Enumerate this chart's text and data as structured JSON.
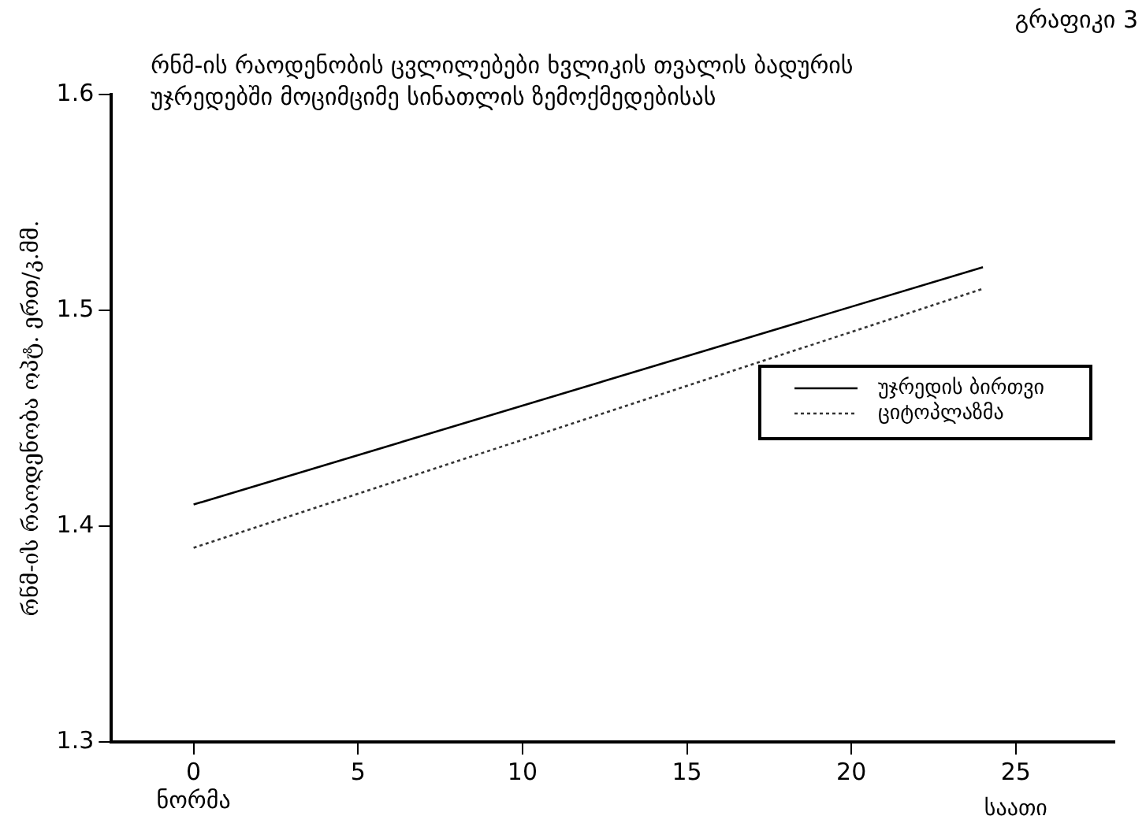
{
  "chart_data": {
    "type": "line",
    "title": "რნმ-ის რაოდენობის ცვლილებები ხვლიკის თვალის ბადურის\nუჯრედებში მოციმციმე სინათლის ზემოქმედებისას",
    "xlabel": "საათი",
    "ylabel": "რნმ-ის რაოდენობა ოპტ. ერთ/კ.მმ.",
    "annotations": [
      "გრაფიკი 3"
    ],
    "x": [
      0,
      24
    ],
    "series": [
      {
        "name": "უჯრედის ბირთვი",
        "color": "#000000",
        "values": [
          1.41,
          1.52
        ],
        "line_style": "solid"
      },
      {
        "name": "ციტოპლაზმა",
        "color": "#333333",
        "values": [
          1.39,
          1.51
        ],
        "line_style": "dotted"
      }
    ],
    "xlim": [
      -2.5,
      28
    ],
    "xticks": [
      {
        "value": 0,
        "label": "0\nნორმა"
      },
      5,
      10,
      15,
      20,
      25
    ],
    "ylim": [
      1.3,
      1.6
    ],
    "yticks": [
      1.3,
      1.4,
      1.5,
      1.6
    ],
    "grid": false,
    "legend": "right",
    "marker": "none"
  }
}
